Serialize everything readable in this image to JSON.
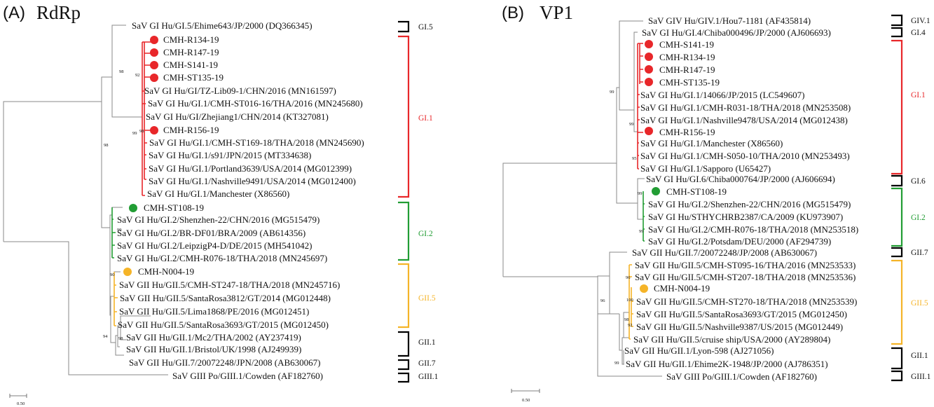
{
  "panels": {
    "a": {
      "panel_label": "(A)",
      "gene_title": "RdRp",
      "scale_label": "0.50"
    },
    "b": {
      "panel_label": "(B)",
      "gene_title": "VP1",
      "scale_label": "0.50"
    }
  },
  "colors": {
    "gi1": "#e8272a",
    "gi2": "#229d34",
    "gii5": "#f5b428",
    "bracket": "#000000",
    "branch": "#8a8a8a"
  },
  "trees": {
    "a": {
      "taxa": [
        "SaV GI Hu/GI.5/Ehime643/JP/2000 (DQ366345)",
        "CMH-R134-19",
        "CMH-R147-19",
        "CMH-S141-19",
        "CMH-ST135-19",
        "SaV GI Hu/GI/TZ-Lib09-1/CHN/2016 (MN161597)",
        "SaV GI Hu/GI.1/CMH-ST016-16/THA/2016 (MN245680)",
        "SaV GI Hu/GI/Zhejiang1/CHN/2014 (KT327081)",
        "CMH-R156-19",
        "SaV GI Hu/GI.1/CMH-ST169-18/THA/2018 (MN245690)",
        "SaV GI Hu/GI.1/s91/JPN/2015 (MT334638)",
        "SaV GI Hu/GI.1/Portland3639/USA/2014 (MG012399)",
        "SaV GI Hu/GI.1/Nashville9491/USA/2014 (MG012400)",
        "SaV GI Hu/GI.1/Manchester (X86560)",
        "CMH-ST108-19",
        "SaV GI Hu/GI.2/Shenzhen-22/CHN/2016 (MG515479)",
        "SaV GI Hu/GI.2/BR-DF01/BRA/2009 (AB614356)",
        "SaV GI Hu/GI.2/LeipzigP4-D/DE/2015 (MH541042)",
        "SaV GI Hu/GI.2/CMH-R076-18/THA/2018 (MN245697)",
        "CMH-N004-19",
        "SaV GII Hu/GII.5/CMH-ST247-18/THA/2018 (MN245716)",
        "SaV GII Hu/GII.5/SantaRosa3812/GT/2014 (MG012448)",
        "SaV GII Hu/GII.5/Lima1868/PE/2016 (MG012451)",
        "SaV GII Hu/GII.5/SantaRosa3693/GT/2015 (MG012450)",
        "SaV GII Hu/GII.1/Mc2/THA/2002 (AY237419)",
        "SaV GII Hu/GII.1/Bristol/UK/1998 (AJ249939)",
        "SaV GII Hu/GII.7/20072248/JPN/2008 (AB630067)",
        "SaV GIII Po/GIII.1/Cowden (AF182760)"
      ],
      "bootstrap": [
        "98",
        "92",
        "98",
        "99",
        "98",
        "99",
        "90",
        "94",
        "98"
      ],
      "clades": [
        "GI.5",
        "GI.1",
        "GI.2",
        "GII.5",
        "GII.1",
        "GII.7",
        "GIII.1"
      ]
    },
    "b": {
      "taxa": [
        "SaV GIV Hu/GIV.1/Hou7-1181 (AF435814)",
        "SaV GI Hu/GI.4/Chiba000496/JP/2000 (AJ606693)",
        "CMH-S141-19",
        "CMH-R134-19",
        "CMH-R147-19",
        "CMH-ST135-19",
        "SaV GI Hu/GI.1/14066/JP/2015 (LC549607)",
        "SaV GI Hu/GI.1/CMH-R031-18/THA/2018 (MN253508)",
        "SaV GI Hu/GI.1/Nashville9478/USA/2014 (MG012438)",
        "CMH-R156-19",
        "SaV GI Hu/GI.1/Manchester (X86560)",
        "SaV GI Hu/GI.1/CMH-S050-10/THA/2010 (MN253493)",
        "SaV GI Hu/GI.1/Sapporo (U65427)",
        "SaV GI Hu/GI.6/Chiba000764/JP/2000 (AJ606694)",
        "CMH-ST108-19",
        "SaV GI Hu/GI.2/Shenzhen-22/CHN/2016 (MG515479)",
        "SaV GI Hu/STHYCHRB2387/CA/2009 (KU973907)",
        "SaV GI Hu/GI.2/CMH-R076-18/THA/2018 (MN253518)",
        "SaV GI Hu/GI.2/Potsdam/DEU/2000 (AF294739)",
        "SaV GII Hu/GII.7/20072248/JP/2008 (AB630067)",
        "SaV GII Hu/GII.5/CMH-ST095-16/THA/2016 (MN253533)",
        "SaV GII Hu/GII.5/CMH-ST207-18/THA/2018 (MN253536)",
        "CMH-N004-19",
        "SaV GII Hu/GII.5/CMH-ST270-18/THA/2018 (MN253539)",
        "SaV GII Hu/GII.5/SantaRosa3693/GT/2015 (MG012450)",
        "SaV GII Hu/GII.5/Nashville9387/US/2015 (MG012449)",
        "SaV GII Hu/GII.5/cruise ship/USA/2000 (AY289804)",
        "SaV GII Hu/GII.1/Lyon-598 (AJ271056)",
        "SaV GII Hu/GII.1/Ehime2K-1948/JP/2000 (AJ786351)",
        "SaV GIII Po/GIII.1/Cowden (AF182760)"
      ],
      "bootstrap": [
        "99",
        "99",
        "95",
        "99",
        "99",
        "96",
        "96",
        "100",
        "98",
        "92",
        "99"
      ],
      "clades": [
        "GIV.1",
        "GI.4",
        "GI.1",
        "GI.6",
        "GI.2",
        "GII.7",
        "GII.5",
        "GII.1",
        "GIII.1"
      ]
    }
  }
}
